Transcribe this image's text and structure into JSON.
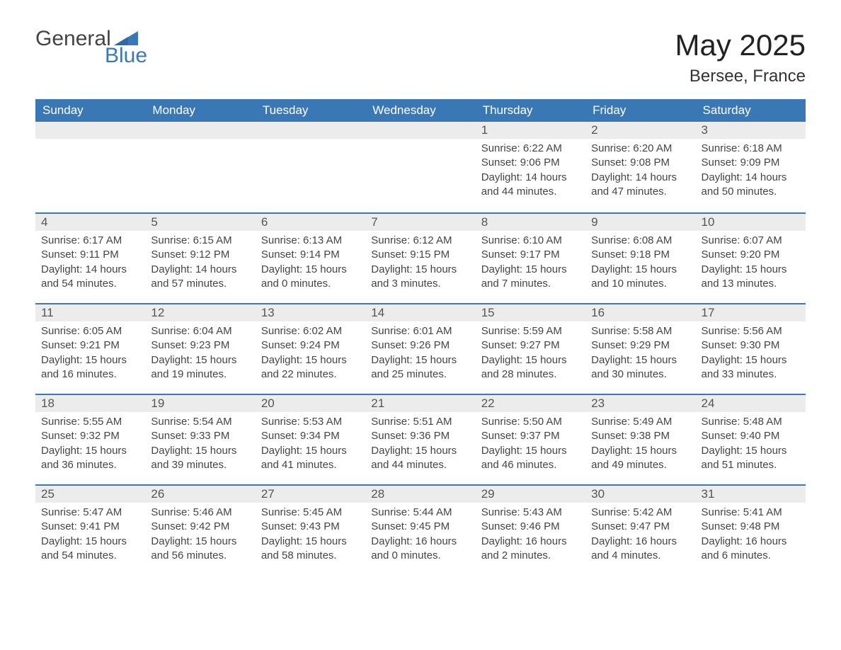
{
  "logo": {
    "word1": "General",
    "word2": "Blue",
    "accent_color": "#3a78b5"
  },
  "header": {
    "title": "May 2025",
    "location": "Bersee, France"
  },
  "colors": {
    "header_bg": "#3a78b5",
    "header_text": "#ffffff",
    "daynum_bg": "#ececec",
    "divider": "#3a78b5",
    "body_text": "#444444"
  },
  "weekdays": [
    "Sunday",
    "Monday",
    "Tuesday",
    "Wednesday",
    "Thursday",
    "Friday",
    "Saturday"
  ],
  "weeks": [
    [
      null,
      null,
      null,
      null,
      {
        "n": "1",
        "sr": "Sunrise: 6:22 AM",
        "ss": "Sunset: 9:06 PM",
        "dl": "Daylight: 14 hours and 44 minutes."
      },
      {
        "n": "2",
        "sr": "Sunrise: 6:20 AM",
        "ss": "Sunset: 9:08 PM",
        "dl": "Daylight: 14 hours and 47 minutes."
      },
      {
        "n": "3",
        "sr": "Sunrise: 6:18 AM",
        "ss": "Sunset: 9:09 PM",
        "dl": "Daylight: 14 hours and 50 minutes."
      }
    ],
    [
      {
        "n": "4",
        "sr": "Sunrise: 6:17 AM",
        "ss": "Sunset: 9:11 PM",
        "dl": "Daylight: 14 hours and 54 minutes."
      },
      {
        "n": "5",
        "sr": "Sunrise: 6:15 AM",
        "ss": "Sunset: 9:12 PM",
        "dl": "Daylight: 14 hours and 57 minutes."
      },
      {
        "n": "6",
        "sr": "Sunrise: 6:13 AM",
        "ss": "Sunset: 9:14 PM",
        "dl": "Daylight: 15 hours and 0 minutes."
      },
      {
        "n": "7",
        "sr": "Sunrise: 6:12 AM",
        "ss": "Sunset: 9:15 PM",
        "dl": "Daylight: 15 hours and 3 minutes."
      },
      {
        "n": "8",
        "sr": "Sunrise: 6:10 AM",
        "ss": "Sunset: 9:17 PM",
        "dl": "Daylight: 15 hours and 7 minutes."
      },
      {
        "n": "9",
        "sr": "Sunrise: 6:08 AM",
        "ss": "Sunset: 9:18 PM",
        "dl": "Daylight: 15 hours and 10 minutes."
      },
      {
        "n": "10",
        "sr": "Sunrise: 6:07 AM",
        "ss": "Sunset: 9:20 PM",
        "dl": "Daylight: 15 hours and 13 minutes."
      }
    ],
    [
      {
        "n": "11",
        "sr": "Sunrise: 6:05 AM",
        "ss": "Sunset: 9:21 PM",
        "dl": "Daylight: 15 hours and 16 minutes."
      },
      {
        "n": "12",
        "sr": "Sunrise: 6:04 AM",
        "ss": "Sunset: 9:23 PM",
        "dl": "Daylight: 15 hours and 19 minutes."
      },
      {
        "n": "13",
        "sr": "Sunrise: 6:02 AM",
        "ss": "Sunset: 9:24 PM",
        "dl": "Daylight: 15 hours and 22 minutes."
      },
      {
        "n": "14",
        "sr": "Sunrise: 6:01 AM",
        "ss": "Sunset: 9:26 PM",
        "dl": "Daylight: 15 hours and 25 minutes."
      },
      {
        "n": "15",
        "sr": "Sunrise: 5:59 AM",
        "ss": "Sunset: 9:27 PM",
        "dl": "Daylight: 15 hours and 28 minutes."
      },
      {
        "n": "16",
        "sr": "Sunrise: 5:58 AM",
        "ss": "Sunset: 9:29 PM",
        "dl": "Daylight: 15 hours and 30 minutes."
      },
      {
        "n": "17",
        "sr": "Sunrise: 5:56 AM",
        "ss": "Sunset: 9:30 PM",
        "dl": "Daylight: 15 hours and 33 minutes."
      }
    ],
    [
      {
        "n": "18",
        "sr": "Sunrise: 5:55 AM",
        "ss": "Sunset: 9:32 PM",
        "dl": "Daylight: 15 hours and 36 minutes."
      },
      {
        "n": "19",
        "sr": "Sunrise: 5:54 AM",
        "ss": "Sunset: 9:33 PM",
        "dl": "Daylight: 15 hours and 39 minutes."
      },
      {
        "n": "20",
        "sr": "Sunrise: 5:53 AM",
        "ss": "Sunset: 9:34 PM",
        "dl": "Daylight: 15 hours and 41 minutes."
      },
      {
        "n": "21",
        "sr": "Sunrise: 5:51 AM",
        "ss": "Sunset: 9:36 PM",
        "dl": "Daylight: 15 hours and 44 minutes."
      },
      {
        "n": "22",
        "sr": "Sunrise: 5:50 AM",
        "ss": "Sunset: 9:37 PM",
        "dl": "Daylight: 15 hours and 46 minutes."
      },
      {
        "n": "23",
        "sr": "Sunrise: 5:49 AM",
        "ss": "Sunset: 9:38 PM",
        "dl": "Daylight: 15 hours and 49 minutes."
      },
      {
        "n": "24",
        "sr": "Sunrise: 5:48 AM",
        "ss": "Sunset: 9:40 PM",
        "dl": "Daylight: 15 hours and 51 minutes."
      }
    ],
    [
      {
        "n": "25",
        "sr": "Sunrise: 5:47 AM",
        "ss": "Sunset: 9:41 PM",
        "dl": "Daylight: 15 hours and 54 minutes."
      },
      {
        "n": "26",
        "sr": "Sunrise: 5:46 AM",
        "ss": "Sunset: 9:42 PM",
        "dl": "Daylight: 15 hours and 56 minutes."
      },
      {
        "n": "27",
        "sr": "Sunrise: 5:45 AM",
        "ss": "Sunset: 9:43 PM",
        "dl": "Daylight: 15 hours and 58 minutes."
      },
      {
        "n": "28",
        "sr": "Sunrise: 5:44 AM",
        "ss": "Sunset: 9:45 PM",
        "dl": "Daylight: 16 hours and 0 minutes."
      },
      {
        "n": "29",
        "sr": "Sunrise: 5:43 AM",
        "ss": "Sunset: 9:46 PM",
        "dl": "Daylight: 16 hours and 2 minutes."
      },
      {
        "n": "30",
        "sr": "Sunrise: 5:42 AM",
        "ss": "Sunset: 9:47 PM",
        "dl": "Daylight: 16 hours and 4 minutes."
      },
      {
        "n": "31",
        "sr": "Sunrise: 5:41 AM",
        "ss": "Sunset: 9:48 PM",
        "dl": "Daylight: 16 hours and 6 minutes."
      }
    ]
  ]
}
